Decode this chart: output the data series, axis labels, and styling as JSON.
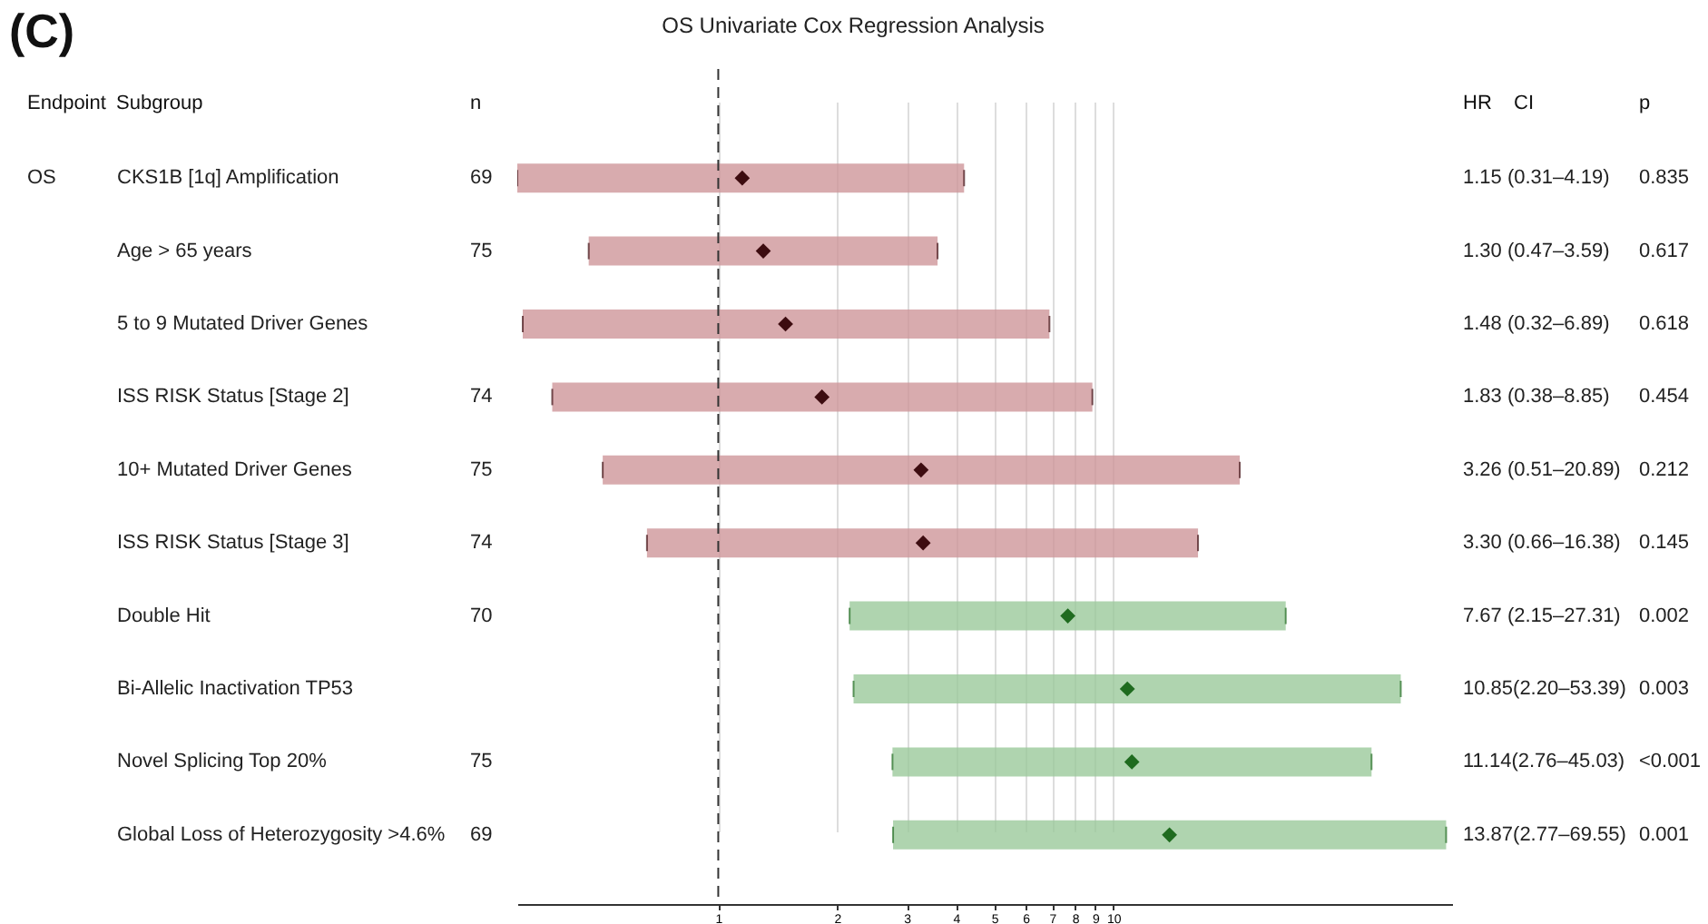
{
  "chart_data": {
    "type": "scatter",
    "orientation": "horizontal",
    "title": "OS Univariate Cox Regression Analysis",
    "categories": [
      "CKS1B [1q] Amplification",
      "Age > 65 years",
      "5 to 9 Mutated Driver Genes",
      "ISS RISK Status [Stage 2]",
      "10+ Mutated Driver Genes",
      "ISS RISK Status [Stage 3]",
      "Double Hit",
      "Bi-Allelic Inactivation TP53",
      "Novel Splicing Top 20%",
      "Global Loss of Heterozygosity >4.6%"
    ],
    "values": [
      1.15,
      1.3,
      1.48,
      1.83,
      3.26,
      3.3,
      7.67,
      10.85,
      11.14,
      13.87
    ],
    "errors": [
      [
        0.31,
        4.19
      ],
      [
        0.47,
        3.59
      ],
      [
        0.32,
        6.89
      ],
      [
        0.38,
        8.85
      ],
      [
        0.51,
        20.89
      ],
      [
        0.66,
        16.38
      ],
      [
        2.15,
        27.31
      ],
      [
        2.2,
        53.39
      ],
      [
        2.76,
        45.03
      ],
      [
        2.77,
        69.55
      ]
    ],
    "colors": [
      "#3d0c10",
      "#3d0c10",
      "#3d0c10",
      "#3d0c10",
      "#3d0c10",
      "#3d0c10",
      "#1f6b1f",
      "#1f6b1f",
      "#1f6b1f",
      "#1f6b1f"
    ],
    "annotations": [
      "(C)",
      "Endpoint",
      "Subgroup",
      "n",
      "HR",
      "CI",
      "p",
      "OS",
      "69",
      "1.15 (0.31–4.19)",
      "0.835",
      "75",
      "1.30 (0.47–3.59)",
      "0.617",
      "1.48 (0.32–6.89)",
      "0.618",
      "74",
      "1.83 (0.38–8.85)",
      "0.454",
      "75",
      "3.26 (0.51–20.89)",
      "0.212",
      "74",
      "3.30 (0.66–16.38)",
      "0.145",
      "70",
      "7.67 (2.15–27.31)",
      "0.002",
      "10.85(2.20–53.39)",
      "0.003",
      "75",
      "11.14(2.76–45.03)",
      "<0.001",
      "69",
      "13.87(2.77–69.55)",
      "0.001"
    ],
    "xlim": [
      0.31,
      72
    ],
    "xticks": [
      1,
      2,
      3,
      4,
      5,
      6,
      7,
      8,
      9,
      10
    ],
    "log": "x",
    "grid": "x",
    "marker": "diamond",
    "ref_lines": [
      {
        "axis": "x",
        "value": 1,
        "color": "#333333",
        "line_style": "dashed"
      }
    ]
  }
}
